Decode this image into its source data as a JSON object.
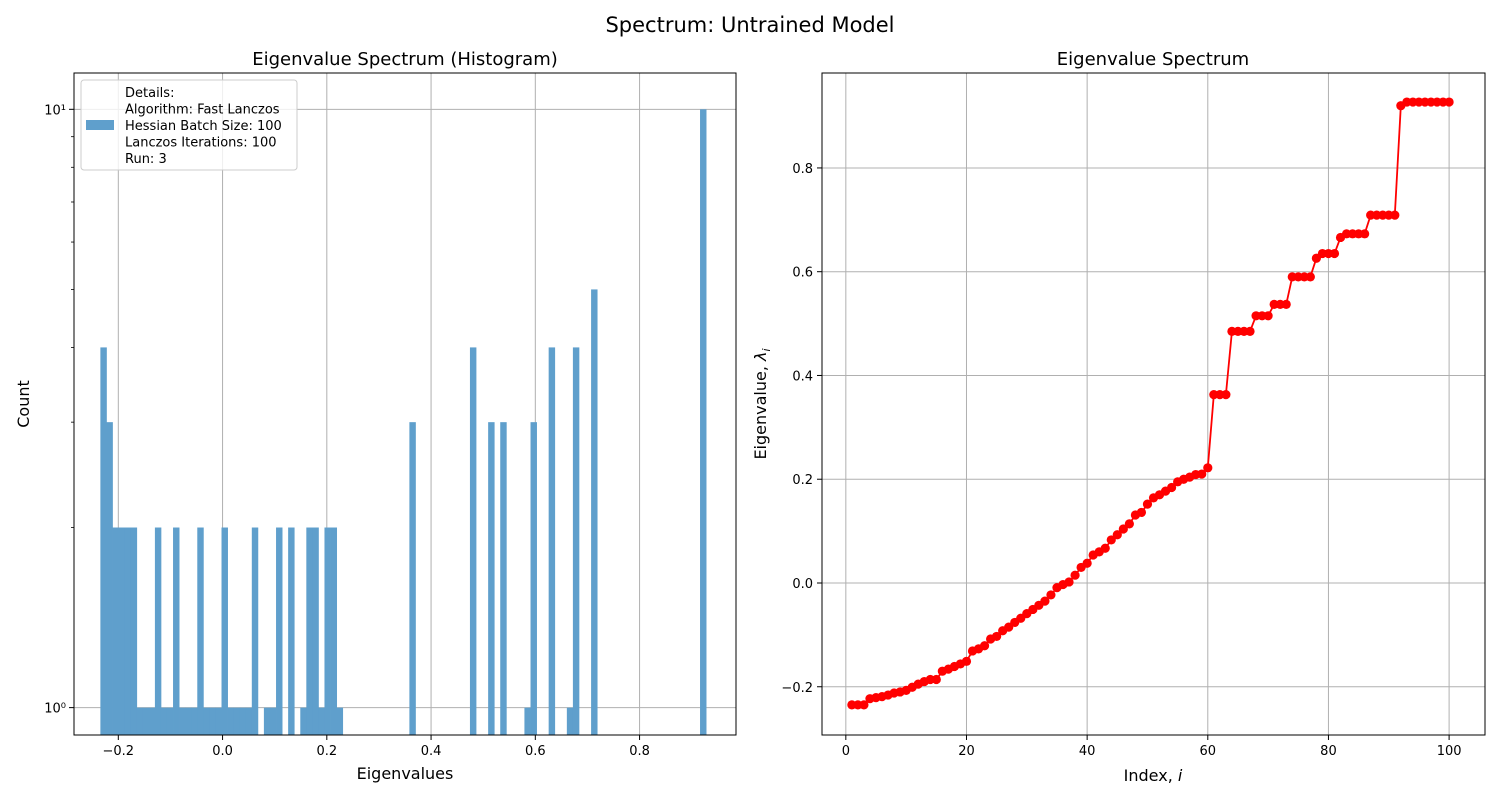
{
  "figure": {
    "suptitle": "Spectrum: Untrained Model"
  },
  "chart_data": [
    {
      "type": "bar",
      "title": "Eigenvalue Spectrum (Histogram)",
      "xlabel": "Eigenvalues",
      "ylabel": "Count",
      "xlim": [
        -0.285,
        0.985
      ],
      "ylim": [
        0.9,
        11.5
      ],
      "yscale": "log",
      "grid": true,
      "legend_position": "upper-left",
      "color": "#5f9fcc",
      "bar_width": 0.0116,
      "x_ticks": [
        -0.2,
        0.0,
        0.2,
        0.4,
        0.6,
        0.8
      ],
      "x_tick_labels": [
        "−0.2",
        "0.0",
        "0.2",
        "0.4",
        "0.6",
        "0.8"
      ],
      "y_ticks": [
        1,
        10
      ],
      "y_tick_labels": [
        "10⁰",
        "10¹"
      ],
      "legend_lines": [
        "Details:",
        "Algorithm: Fast Lanczos",
        "Hessian Batch Size: 100",
        "Lanczos Iterations: 100",
        "Run: 3"
      ],
      "bins": [
        {
          "x": -0.2286,
          "count": 4
        },
        {
          "x": -0.217,
          "count": 3
        },
        {
          "x": -0.2053,
          "count": 2
        },
        {
          "x": -0.1937,
          "count": 2
        },
        {
          "x": -0.1821,
          "count": 2
        },
        {
          "x": -0.1705,
          "count": 2
        },
        {
          "x": -0.1589,
          "count": 1
        },
        {
          "x": -0.1473,
          "count": 1
        },
        {
          "x": -0.1356,
          "count": 1
        },
        {
          "x": -0.124,
          "count": 2
        },
        {
          "x": -0.1124,
          "count": 1
        },
        {
          "x": -0.1008,
          "count": 1
        },
        {
          "x": -0.0892,
          "count": 2
        },
        {
          "x": -0.0775,
          "count": 1
        },
        {
          "x": -0.0659,
          "count": 1
        },
        {
          "x": -0.0543,
          "count": 1
        },
        {
          "x": -0.0427,
          "count": 2
        },
        {
          "x": -0.0311,
          "count": 1
        },
        {
          "x": -0.0194,
          "count": 1
        },
        {
          "x": -0.0078,
          "count": 1
        },
        {
          "x": 0.0038,
          "count": 2
        },
        {
          "x": 0.0154,
          "count": 1
        },
        {
          "x": 0.027,
          "count": 1
        },
        {
          "x": 0.0387,
          "count": 1
        },
        {
          "x": 0.0503,
          "count": 1
        },
        {
          "x": 0.0619,
          "count": 2
        },
        {
          "x": 0.0851,
          "count": 1
        },
        {
          "x": 0.0968,
          "count": 1
        },
        {
          "x": 0.1084,
          "count": 2
        },
        {
          "x": 0.1316,
          "count": 2
        },
        {
          "x": 0.1549,
          "count": 1
        },
        {
          "x": 0.1665,
          "count": 2
        },
        {
          "x": 0.1781,
          "count": 2
        },
        {
          "x": 0.1897,
          "count": 1
        },
        {
          "x": 0.2013,
          "count": 2
        },
        {
          "x": 0.213,
          "count": 2
        },
        {
          "x": 0.2246,
          "count": 1
        },
        {
          "x": 0.3642,
          "count": 3
        },
        {
          "x": 0.4804,
          "count": 4
        },
        {
          "x": 0.5153,
          "count": 3
        },
        {
          "x": 0.5385,
          "count": 3
        },
        {
          "x": 0.5849,
          "count": 1
        },
        {
          "x": 0.5966,
          "count": 3
        },
        {
          "x": 0.6314,
          "count": 4
        },
        {
          "x": 0.6663,
          "count": 1
        },
        {
          "x": 0.6779,
          "count": 4
        },
        {
          "x": 0.7128,
          "count": 5
        },
        {
          "x": 0.9218,
          "count": 10
        }
      ]
    },
    {
      "type": "line",
      "title": "Eigenvalue Spectrum",
      "xlabel": "Index, ",
      "xlabel_var": "i",
      "ylabel": "Eigenvalue, ",
      "ylabel_var": "λ",
      "ylabel_sub": "i",
      "xlim": [
        -3.95,
        105.95
      ],
      "ylim": [
        -0.293,
        0.983
      ],
      "grid": true,
      "color": "#ff0000",
      "x_ticks": [
        0,
        20,
        40,
        60,
        80,
        100
      ],
      "x_tick_labels": [
        "0",
        "20",
        "40",
        "60",
        "80",
        "100"
      ],
      "y_ticks": [
        -0.2,
        0.0,
        0.2,
        0.4,
        0.6,
        0.8
      ],
      "y_tick_labels": [
        "−0.2",
        "0.0",
        "0.2",
        "0.4",
        "0.6",
        "0.8"
      ],
      "x_start": 1,
      "values": [
        -0.235,
        -0.235,
        -0.235,
        -0.223,
        -0.221,
        -0.219,
        -0.216,
        -0.212,
        -0.21,
        -0.207,
        -0.201,
        -0.195,
        -0.19,
        -0.186,
        -0.186,
        -0.17,
        -0.166,
        -0.161,
        -0.156,
        -0.151,
        -0.131,
        -0.127,
        -0.121,
        -0.108,
        -0.103,
        -0.092,
        -0.085,
        -0.076,
        -0.068,
        -0.059,
        -0.051,
        -0.043,
        -0.035,
        -0.023,
        -0.009,
        -0.003,
        0.002,
        0.015,
        0.03,
        0.038,
        0.054,
        0.06,
        0.067,
        0.083,
        0.093,
        0.104,
        0.114,
        0.131,
        0.136,
        0.152,
        0.164,
        0.17,
        0.177,
        0.184,
        0.195,
        0.2,
        0.204,
        0.209,
        0.21,
        0.222,
        0.363,
        0.363,
        0.363,
        0.485,
        0.485,
        0.485,
        0.485,
        0.515,
        0.515,
        0.515,
        0.537,
        0.537,
        0.537,
        0.59,
        0.59,
        0.59,
        0.59,
        0.626,
        0.635,
        0.635,
        0.635,
        0.666,
        0.673,
        0.673,
        0.673,
        0.673,
        0.709,
        0.709,
        0.709,
        0.709,
        0.709,
        0.92,
        0.927,
        0.927,
        0.927,
        0.927,
        0.927,
        0.927,
        0.927,
        0.927
      ]
    }
  ]
}
